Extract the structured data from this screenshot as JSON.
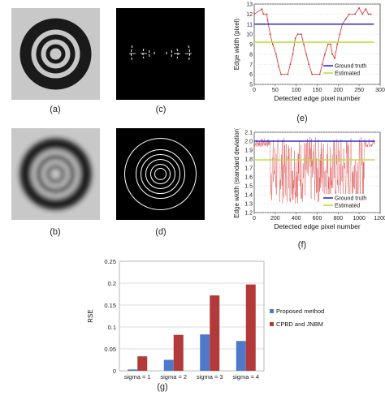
{
  "captions": {
    "a": "(a)",
    "b": "(b)",
    "c": "(c)",
    "d": "(d)",
    "e": "(e)",
    "f": "(f)",
    "g": "(g)"
  },
  "colors": {
    "ring_dark": "#1a1a1a",
    "ring_gray": "#c8c8c8",
    "edge_bg": "#000000",
    "edge_line": "#ffffff",
    "ground_truth": "#2b2bd6",
    "estimated": "#b8e03a",
    "measured": "#d62a2a",
    "bar_proposed": "#4f78c8",
    "bar_cpbd": "#b33a3a"
  },
  "chart_data": [
    {
      "type": "line",
      "panel": "e",
      "xlabel": "Detected edge pixel number",
      "ylabel": "Edge width (pixel)",
      "xlim": [
        0,
        300
      ],
      "ylim": [
        5,
        13
      ],
      "xticks": [
        0,
        50,
        100,
        150,
        200,
        250,
        300
      ],
      "yticks": [
        5,
        6,
        7,
        8,
        9,
        10,
        11,
        12,
        13
      ],
      "legend_position": "bottom-right",
      "series": [
        {
          "name": "Ground truth",
          "kind": "constant",
          "value": 11
        },
        {
          "name": "Estimated",
          "kind": "constant",
          "value": 9.2
        },
        {
          "kind": "measured",
          "segments": [
            [
              0,
              12
            ],
            [
              18,
              12.5
            ],
            [
              22,
              12
            ],
            [
              30,
              12
            ],
            [
              32,
              11.4
            ],
            [
              38,
              10
            ],
            [
              44,
              9
            ],
            [
              52,
              8
            ],
            [
              58,
              6.8
            ],
            [
              64,
              6
            ],
            [
              80,
              6
            ],
            [
              86,
              7
            ],
            [
              92,
              8
            ],
            [
              98,
              9.6
            ],
            [
              104,
              10
            ],
            [
              112,
              10
            ],
            [
              118,
              9
            ],
            [
              124,
              8
            ],
            [
              130,
              7
            ],
            [
              138,
              6
            ],
            [
              156,
              6
            ],
            [
              162,
              7
            ],
            [
              168,
              8
            ],
            [
              176,
              9
            ],
            [
              182,
              9
            ],
            [
              186,
              8
            ],
            [
              192,
              7.6
            ],
            [
              198,
              9
            ],
            [
              204,
              10
            ],
            [
              210,
              11
            ],
            [
              218,
              11.5
            ],
            [
              226,
              12
            ],
            [
              240,
              12
            ],
            [
              250,
              12.6
            ],
            [
              258,
              12
            ],
            [
              266,
              12.5
            ],
            [
              272,
              12
            ],
            [
              278,
              12
            ]
          ]
        }
      ]
    },
    {
      "type": "line",
      "panel": "f",
      "xlabel": "Detected edge pixel number",
      "ylabel": "Edge width (standard deviation)",
      "xlim": [
        0,
        1200
      ],
      "ylim": [
        1.2,
        2.1
      ],
      "xticks": [
        0,
        200,
        400,
        600,
        800,
        1000,
        1200
      ],
      "yticks": [
        1.2,
        1.3,
        1.4,
        1.5,
        1.6,
        1.7,
        1.8,
        1.9,
        2.0,
        2.1
      ],
      "ytick_labels": [
        "1.2",
        "1.3",
        "1.4",
        "1.5",
        "1.6",
        "1.7",
        "1.8",
        "1.9",
        "2.0",
        "2.1"
      ],
      "legend_position": "bottom-right",
      "series": [
        {
          "name": "Ground truth",
          "kind": "constant",
          "value": 2.0
        },
        {
          "name": "Estimated",
          "kind": "constant",
          "value": 1.79
        },
        {
          "kind": "measured_noisy",
          "points": 1150,
          "low": 1.3,
          "high": 2.05
        }
      ]
    },
    {
      "type": "bar",
      "panel": "g",
      "ylabel": "RSE",
      "categories": [
        "sigma = 1",
        "sigma = 2",
        "sigma = 3",
        "sigma = 4"
      ],
      "ylim": [
        0,
        0.25
      ],
      "yticks": [
        0,
        0.05,
        0.1,
        0.15,
        0.2,
        0.25
      ],
      "ytick_labels": [
        "0",
        "0.05",
        "0.1",
        "0.15",
        "0.2",
        "0.25"
      ],
      "legend_position": "right",
      "series": [
        {
          "name": "Proposed method",
          "values": [
            0.003,
            0.025,
            0.083,
            0.068
          ]
        },
        {
          "name": "CPBD and JNBM",
          "values": [
            0.033,
            0.082,
            0.172,
            0.197
          ]
        }
      ]
    }
  ]
}
